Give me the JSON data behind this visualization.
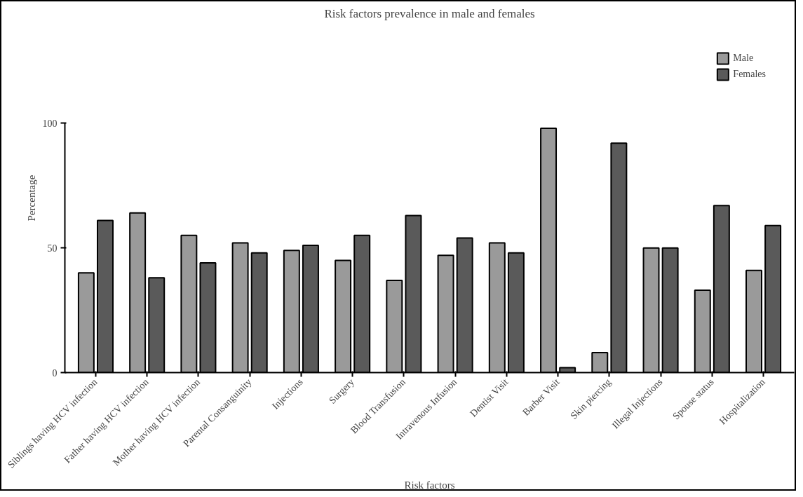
{
  "chart_data": {
    "type": "bar",
    "title": "Risk factors prevalence in male and females",
    "xlabel": "Risk factors",
    "ylabel": "Percentage",
    "categories": [
      "Siblings having HCV infection",
      "Father having HCV infection",
      "Mother having HCV infection",
      "Parental Consanguinity",
      "Injections",
      "Surgery",
      "Blood Transfusion",
      "Intravenous Infusion",
      "Dentist Visit",
      "Barber Visit",
      "Skin piercing",
      "Illegal Injections",
      "Spouse status",
      "Hospitalization"
    ],
    "series": [
      {
        "name": "Male",
        "color": "#9a9a9a",
        "values": [
          40,
          64,
          55,
          52,
          49,
          45,
          37,
          47,
          52,
          98,
          8,
          50,
          33,
          41
        ]
      },
      {
        "name": "Females",
        "color": "#5a5a5a",
        "values": [
          61,
          38,
          44,
          48,
          51,
          55,
          63,
          54,
          48,
          2,
          92,
          50,
          67,
          59
        ]
      }
    ],
    "ylim": [
      0,
      100
    ],
    "yticks": [
      0,
      50,
      100
    ],
    "grid": false,
    "legend": "top right"
  }
}
